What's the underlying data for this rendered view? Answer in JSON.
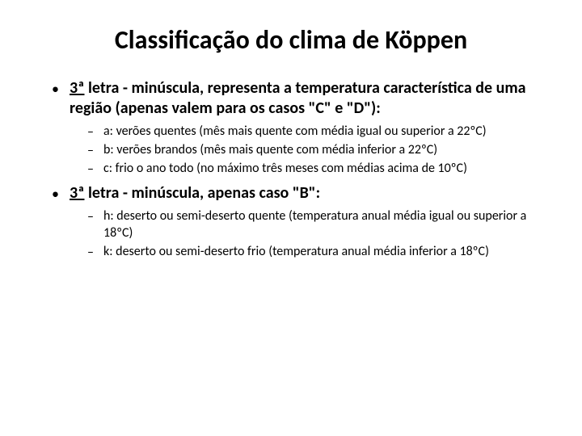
{
  "title": "Classificação do clima de Köppen",
  "sections": [
    {
      "ordinal": "3ª",
      "heading_rest": " letra - minúscula, representa a temperatura característica de uma região (apenas valem para os casos \"C\" e \"D\"):",
      "items": [
        "a: verões quentes (mês mais quente com média igual ou superior a 22ºC)",
        "b: verões brandos (mês mais quente com média inferior a 22ºC)",
        "c: frio o ano todo (no máximo três meses com médias acima de 10ºC)"
      ]
    },
    {
      "ordinal": "3ª",
      "heading_rest": " letra - minúscula, apenas caso \"B\":",
      "items": [
        "h: deserto ou semi-deserto quente (temperatura anual média igual ou superior a 18ºC)",
        "k: deserto ou semi-deserto frio (temperatura anual média inferior a 18ºC)"
      ]
    }
  ],
  "colors": {
    "background": "#ffffff",
    "text": "#000000"
  },
  "typography": {
    "title_fontsize": 32,
    "l1_fontsize": 20,
    "l2_fontsize": 16,
    "font_family": "Calibri"
  }
}
